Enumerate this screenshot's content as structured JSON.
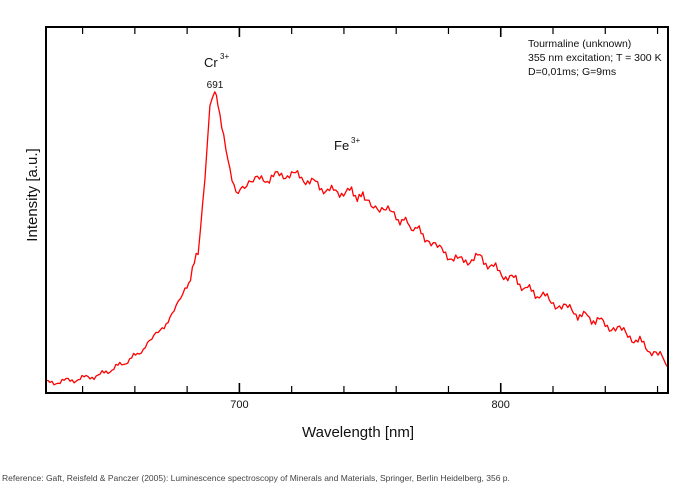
{
  "chart_data": {
    "type": "line",
    "title": "",
    "xlabel": "Wavelength [nm]",
    "ylabel": "Intensity [a.u.]",
    "xlim": [
      626,
      864
    ],
    "ylim": [
      0,
      100
    ],
    "x_major_ticks": [
      700,
      800
    ],
    "x_minor_step": 20,
    "grid": false,
    "series": [
      {
        "name": "Tourmaline (unknown)",
        "color": "#ff0000",
        "x": [
          626,
          636,
          646.7,
          652,
          658,
          664,
          669.7,
          675,
          679.2,
          682,
          684.2,
          686.8,
          688.7,
          690.6,
          691.8,
          694,
          696.4,
          698.7,
          702,
          707.7,
          713,
          719.2,
          726.9,
          734.5,
          742.2,
          748,
          753.7,
          760,
          765.1,
          771,
          776.6,
          784.3,
          792,
          799.6,
          805,
          811,
          817,
          822.5,
          828,
          834,
          840,
          845.5,
          851,
          857,
          861,
          864
        ],
        "y": [
          2.7,
          3.5,
          4.9,
          6.8,
          9,
          12.5,
          17,
          22,
          28,
          33,
          39,
          58,
          77,
          81,
          80,
          69,
          60,
          56,
          57,
          58,
          59,
          60,
          58,
          55,
          55,
          53,
          51,
          48,
          46,
          43,
          39,
          36,
          37,
          33,
          31,
          28,
          26,
          24,
          22,
          20.5,
          19,
          17,
          15,
          12,
          10,
          7
        ]
      }
    ],
    "annotations": {
      "cr_label": "Cr",
      "cr_sup": "3+",
      "cr_peak": "691",
      "fe_label": "Fe",
      "fe_sup": "3+"
    },
    "info_lines": [
      "Tourmaline (unknown)",
      "355 nm excitation; T = 300 K",
      "D=0,01ms; G=9ms"
    ]
  },
  "reference": "Reference: Gaft, Reisfeld & Panczer (2005): Luminescence spectroscopy of Minerals and Materials, Springer, Berlin Heidelberg, 356 p."
}
